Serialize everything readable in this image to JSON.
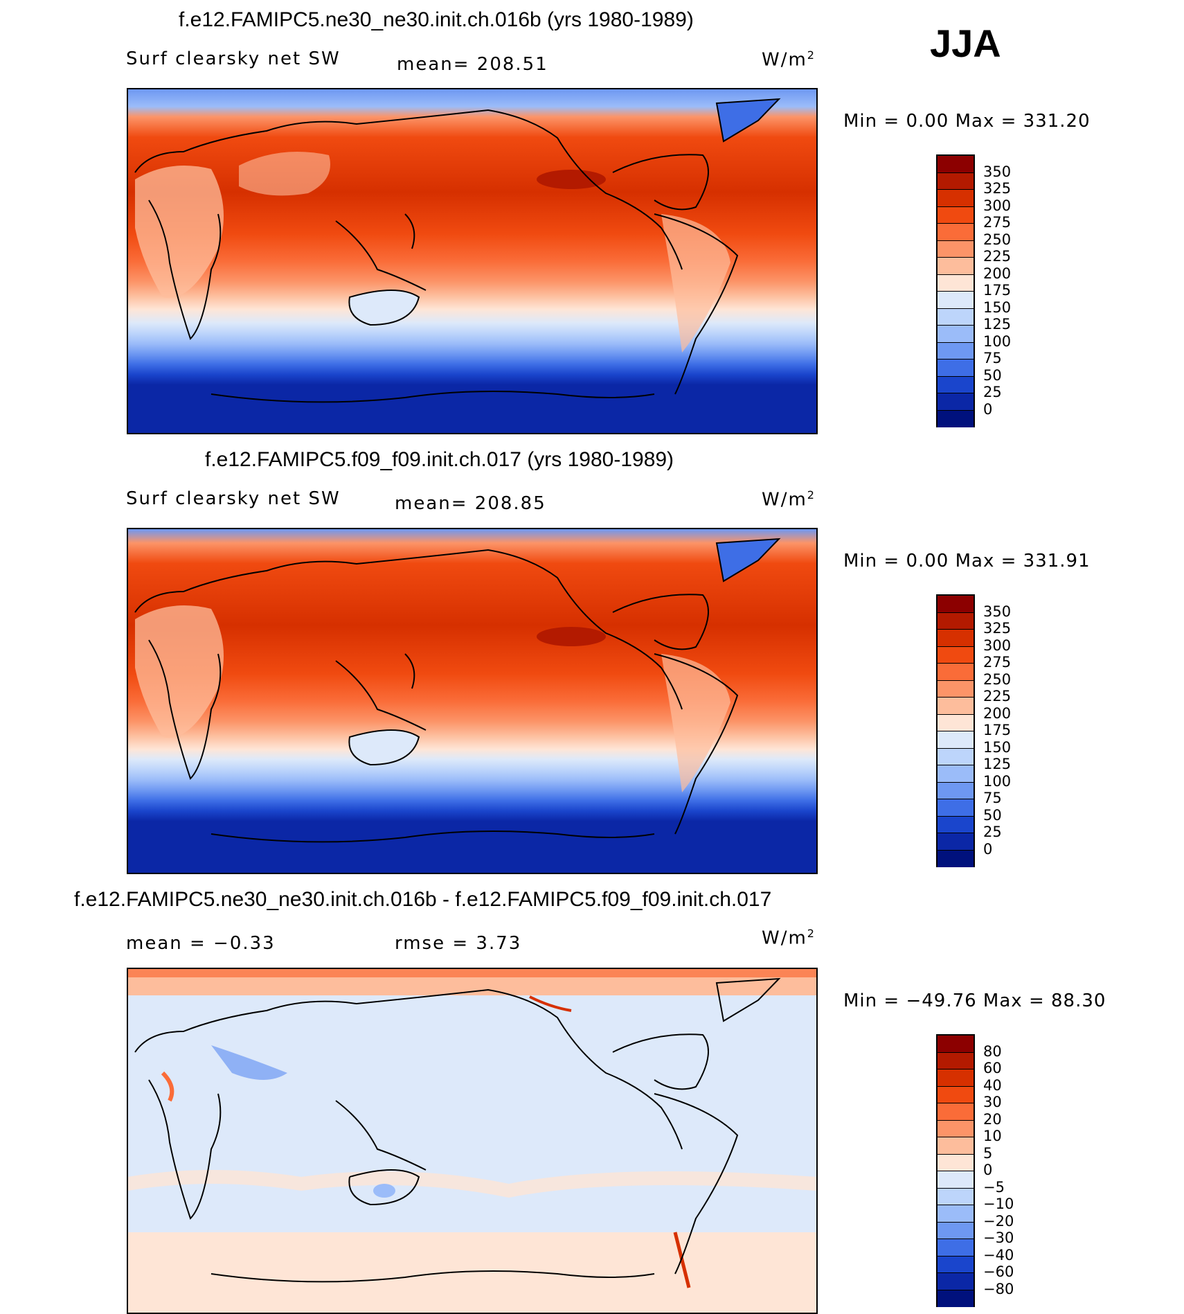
{
  "season": "JJA",
  "panels": [
    {
      "title": "f.e12.FAMIPC5.ne30_ne30.init.ch.016b (yrs 1980-1989)",
      "variable": "Surf clearsky net SW",
      "mean_text": "mean=  208.51",
      "units": "W/m",
      "units_sup": "2",
      "minmax": "Min  =      0.00  Max  =  331.20",
      "colorbar_labels": [
        "350",
        "325",
        "300",
        "275",
        "250",
        "225",
        "200",
        "175",
        "150",
        "125",
        "100",
        "75",
        "50",
        "25",
        "0"
      ],
      "colorbar_colors": [
        "#8c0000",
        "#b31a00",
        "#d63000",
        "#f04a10",
        "#fa6c38",
        "#fc9468",
        "#fdbd9c",
        "#fee5d6",
        "#dde9fa",
        "#bdd5fb",
        "#9bbcf9",
        "#6e98f2",
        "#3e6ee6",
        "#1a45cc",
        "#0b27a6",
        "#00117d"
      ]
    },
    {
      "title": "f.e12.FAMIPC5.f09_f09.init.ch.017 (yrs 1980-1989)",
      "variable": "Surf clearsky net SW",
      "mean_text": "mean=  208.85",
      "units": "W/m",
      "units_sup": "2",
      "minmax": "Min  =      0.00  Max  =  331.91",
      "colorbar_labels": [
        "350",
        "325",
        "300",
        "275",
        "250",
        "225",
        "200",
        "175",
        "150",
        "125",
        "100",
        "75",
        "50",
        "25",
        "0"
      ],
      "colorbar_colors": [
        "#8c0000",
        "#b31a00",
        "#d63000",
        "#f04a10",
        "#fa6c38",
        "#fc9468",
        "#fdbd9c",
        "#fee5d6",
        "#dde9fa",
        "#bdd5fb",
        "#9bbcf9",
        "#6e98f2",
        "#3e6ee6",
        "#1a45cc",
        "#0b27a6",
        "#00117d"
      ]
    },
    {
      "title": "f.e12.FAMIPC5.ne30_ne30.init.ch.016b - f.e12.FAMIPC5.f09_f09.init.ch.017",
      "mean_text": "mean  =   −0.33",
      "rmse_text": "rmse  =    3.73",
      "units": "W/m",
      "units_sup": "2",
      "minmax": "Min  =  −49.76  Max  =   88.30",
      "colorbar_labels": [
        "80",
        "60",
        "40",
        "30",
        "20",
        "10",
        "5",
        "0",
        "−5",
        "−10",
        "−20",
        "−30",
        "−40",
        "−60",
        "−80"
      ],
      "colorbar_colors": [
        "#8c0000",
        "#b31a00",
        "#d63000",
        "#f04a10",
        "#fa6c38",
        "#fc9468",
        "#fdbd9c",
        "#fee5d6",
        "#dde9fa",
        "#bdd5fb",
        "#9bbcf9",
        "#6e98f2",
        "#3e6ee6",
        "#1a45cc",
        "#0b27a6",
        "#00117d"
      ]
    }
  ]
}
